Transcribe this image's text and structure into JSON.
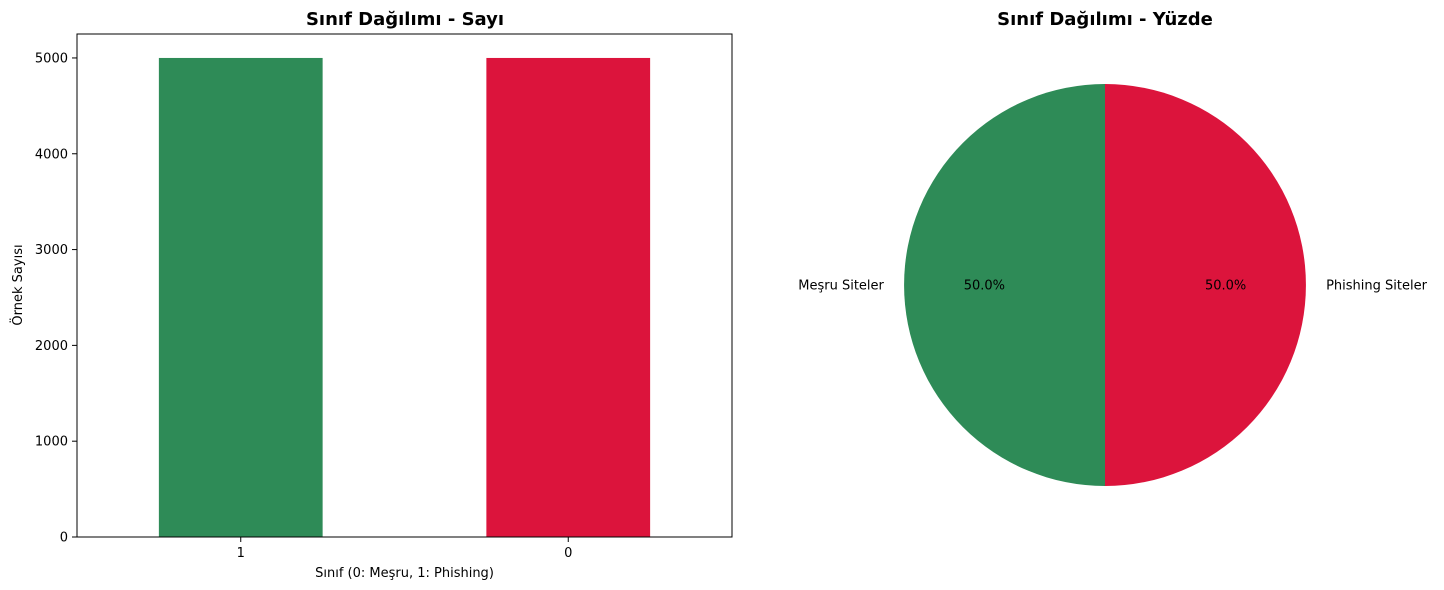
{
  "chart_data": [
    {
      "type": "bar",
      "title": "Sınıf Dağılımı - Sayı",
      "xlabel": "Sınıf (0: Meşru, 1: Phishing)",
      "ylabel": "Örnek Sayısı",
      "categories": [
        "1",
        "0"
      ],
      "values": [
        5000,
        5000
      ],
      "colors": [
        "#2e8b57",
        "#dc143c"
      ],
      "ylim": [
        0,
        5250
      ],
      "yticks": [
        0,
        1000,
        2000,
        3000,
        4000,
        5000
      ],
      "grid": false
    },
    {
      "type": "pie",
      "title": "Sınıf Dağılımı - Yüzde",
      "labels": [
        "Meşru Siteler",
        "Phishing Siteler"
      ],
      "values": [
        50.0,
        50.0
      ],
      "pct_labels": [
        "50.0%",
        "50.0%"
      ],
      "colors": [
        "#2e8b57",
        "#dc143c"
      ]
    }
  ]
}
